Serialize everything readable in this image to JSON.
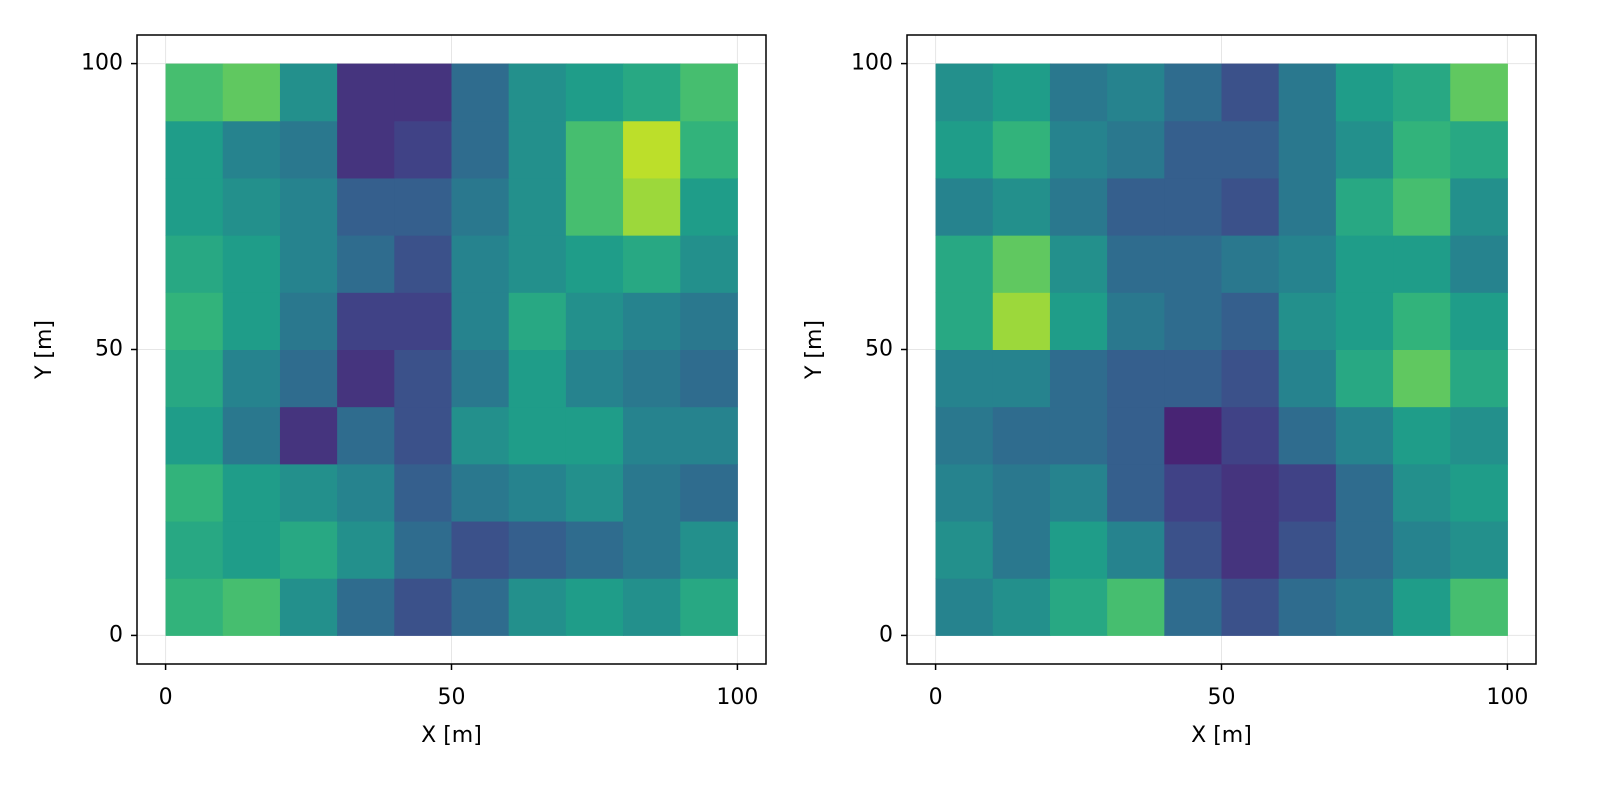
{
  "chart_data": [
    {
      "type": "heatmap",
      "xlabel": "X [m]",
      "ylabel": "Y [m]",
      "colormap": "viridis",
      "grid": true,
      "xlim": [
        -5,
        105
      ],
      "ylim": [
        -5,
        105
      ],
      "xticks": [
        0,
        50,
        100
      ],
      "yticks": [
        0,
        50,
        100
      ],
      "xbins": [
        0,
        10,
        20,
        30,
        40,
        50,
        60,
        70,
        80,
        90,
        100
      ],
      "ybins": [
        0,
        10,
        20,
        30,
        40,
        50,
        60,
        70,
        80,
        90,
        100
      ],
      "z": [
        [
          0.65,
          0.7,
          0.5,
          0.35,
          0.25,
          0.35,
          0.5,
          0.55,
          0.5,
          0.6
        ],
        [
          0.6,
          0.55,
          0.6,
          0.5,
          0.35,
          0.25,
          0.3,
          0.35,
          0.4,
          0.5
        ],
        [
          0.65,
          0.55,
          0.5,
          0.45,
          0.3,
          0.4,
          0.45,
          0.5,
          0.4,
          0.35
        ],
        [
          0.55,
          0.4,
          0.15,
          0.35,
          0.25,
          0.5,
          0.55,
          0.55,
          0.45,
          0.45
        ],
        [
          0.6,
          0.45,
          0.35,
          0.15,
          0.25,
          0.4,
          0.55,
          0.45,
          0.4,
          0.35
        ],
        [
          0.65,
          0.55,
          0.4,
          0.2,
          0.2,
          0.45,
          0.6,
          0.5,
          0.45,
          0.4
        ],
        [
          0.6,
          0.55,
          0.45,
          0.35,
          0.25,
          0.45,
          0.5,
          0.55,
          0.6,
          0.5
        ],
        [
          0.55,
          0.5,
          0.45,
          0.3,
          0.3,
          0.4,
          0.5,
          0.7,
          0.85,
          0.55
        ],
        [
          0.55,
          0.45,
          0.4,
          0.15,
          0.2,
          0.35,
          0.5,
          0.7,
          0.9,
          0.65
        ],
        [
          0.7,
          0.75,
          0.5,
          0.15,
          0.15,
          0.35,
          0.5,
          0.55,
          0.6,
          0.7
        ]
      ]
    },
    {
      "type": "heatmap",
      "xlabel": "X [m]",
      "ylabel": "Y [m]",
      "colormap": "viridis",
      "grid": true,
      "xlim": [
        -5,
        105
      ],
      "ylim": [
        -5,
        105
      ],
      "xticks": [
        0,
        50,
        100
      ],
      "yticks": [
        0,
        50,
        100
      ],
      "xbins": [
        0,
        10,
        20,
        30,
        40,
        50,
        60,
        70,
        80,
        90,
        100
      ],
      "ybins": [
        0,
        10,
        20,
        30,
        40,
        50,
        60,
        70,
        80,
        90,
        100
      ],
      "z": [
        [
          0.45,
          0.5,
          0.6,
          0.7,
          0.35,
          0.25,
          0.35,
          0.4,
          0.55,
          0.7
        ],
        [
          0.5,
          0.4,
          0.55,
          0.45,
          0.25,
          0.15,
          0.25,
          0.35,
          0.45,
          0.5
        ],
        [
          0.45,
          0.4,
          0.45,
          0.3,
          0.2,
          0.15,
          0.2,
          0.35,
          0.5,
          0.55
        ],
        [
          0.4,
          0.35,
          0.35,
          0.3,
          0.1,
          0.2,
          0.35,
          0.45,
          0.55,
          0.5
        ],
        [
          0.45,
          0.45,
          0.35,
          0.3,
          0.3,
          0.25,
          0.45,
          0.6,
          0.75,
          0.6
        ],
        [
          0.6,
          0.85,
          0.55,
          0.4,
          0.35,
          0.3,
          0.5,
          0.55,
          0.65,
          0.55
        ],
        [
          0.6,
          0.75,
          0.5,
          0.35,
          0.35,
          0.4,
          0.45,
          0.55,
          0.55,
          0.45
        ],
        [
          0.45,
          0.5,
          0.4,
          0.3,
          0.3,
          0.25,
          0.4,
          0.6,
          0.7,
          0.5
        ],
        [
          0.55,
          0.65,
          0.45,
          0.4,
          0.3,
          0.3,
          0.4,
          0.5,
          0.65,
          0.6
        ],
        [
          0.5,
          0.55,
          0.4,
          0.45,
          0.35,
          0.25,
          0.4,
          0.55,
          0.6,
          0.75
        ]
      ]
    }
  ]
}
